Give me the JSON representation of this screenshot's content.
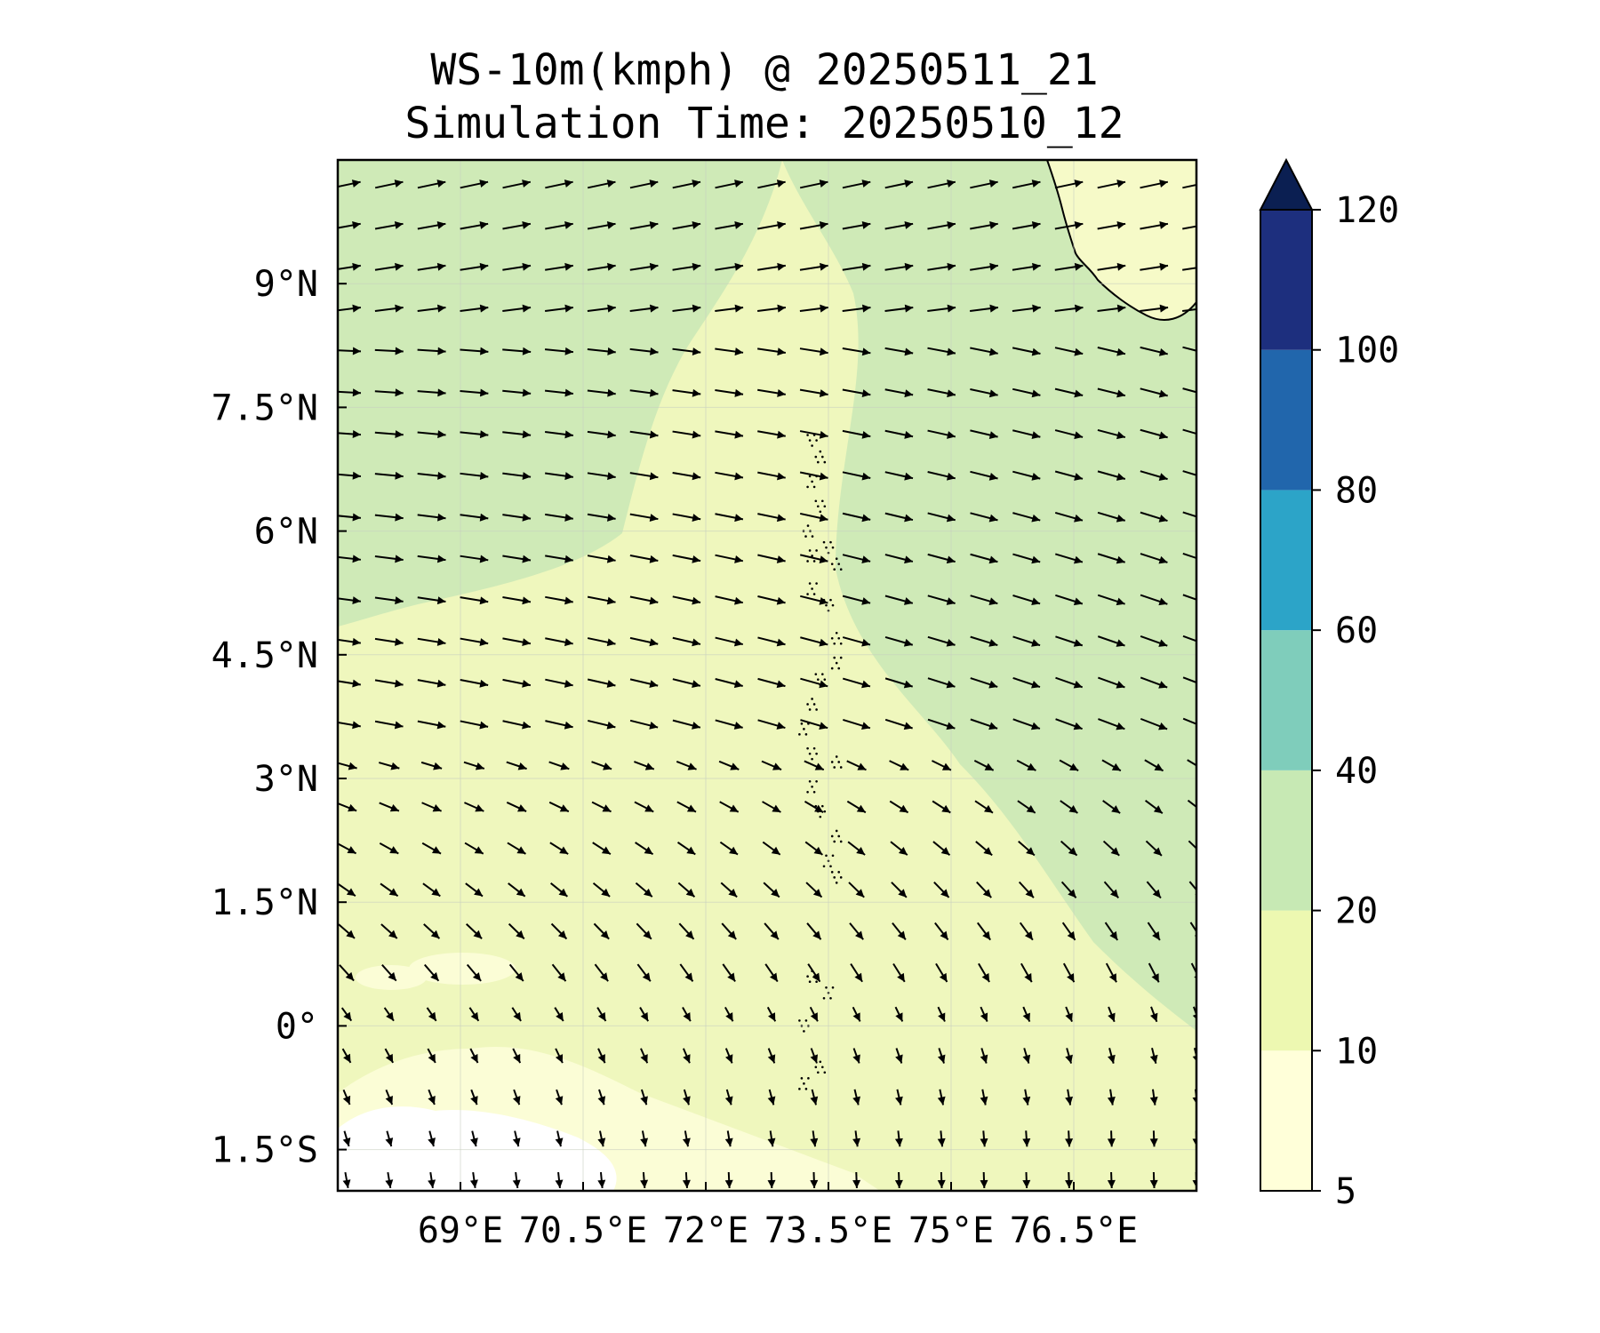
{
  "title_line1": "WS-10m(kmph) @ 20250511_21",
  "title_line2": "Simulation Time: 20250510_12",
  "map": {
    "lon_range": [
      67.5,
      78.0
    ],
    "lat_range": [
      -2.0,
      10.5
    ],
    "lon_ticks": [
      {
        "value": 69.0,
        "label": "69°E"
      },
      {
        "value": 70.5,
        "label": "70.5°E"
      },
      {
        "value": 72.0,
        "label": "72°E"
      },
      {
        "value": 73.5,
        "label": "73.5°E"
      },
      {
        "value": 75.0,
        "label": "75°E"
      },
      {
        "value": 76.5,
        "label": "76.5°E"
      }
    ],
    "lat_ticks": [
      {
        "value": 9.0,
        "label": "9°N"
      },
      {
        "value": 7.5,
        "label": "7.5°N"
      },
      {
        "value": 6.0,
        "label": "6°N"
      },
      {
        "value": 4.5,
        "label": "4.5°N"
      },
      {
        "value": 3.0,
        "label": "3°N"
      },
      {
        "value": 1.5,
        "label": "1.5°N"
      },
      {
        "value": 0.0,
        "label": "0°"
      },
      {
        "value": -1.5,
        "label": "1.5°S"
      }
    ],
    "gridlines": true,
    "background_color": "#f0f8c0",
    "wind_vectors": "dense quiver field, westerly flow turning northerly in south"
  },
  "colorbar": {
    "levels": [
      5,
      10,
      20,
      40,
      60,
      80,
      100,
      120
    ],
    "labels": [
      "5",
      "10",
      "20",
      "40",
      "60",
      "80",
      "100",
      "120"
    ],
    "colors": [
      "#ffffd9",
      "#edf8b1",
      "#c7e9b4",
      "#7fcdbb",
      "#2ca4c8",
      "#2166ac",
      "#1d2f7e",
      "#0b1f52"
    ],
    "extend": "max"
  }
}
